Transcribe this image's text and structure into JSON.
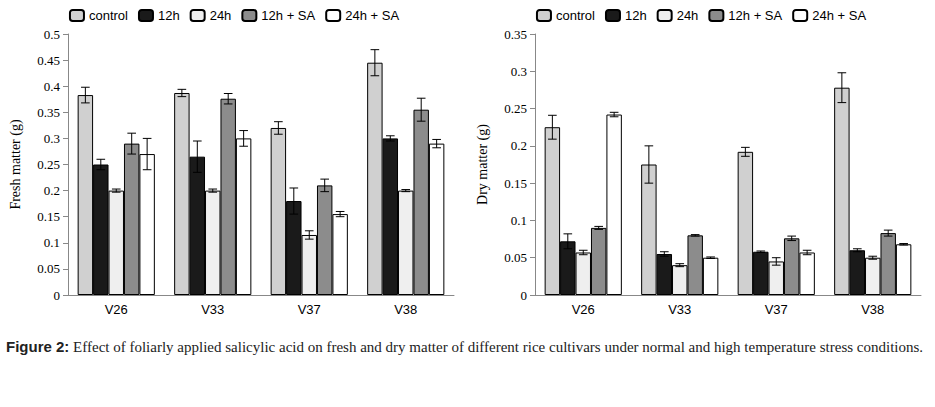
{
  "chart_data": [
    {
      "type": "bar",
      "y_label": "Fresh matter (g)",
      "categories": [
        "V26",
        "V33",
        "V37",
        "V38"
      ],
      "ylim": [
        0,
        0.5
      ],
      "yticks": [
        0,
        0.05,
        0.1,
        0.15,
        0.2,
        0.25,
        0.3,
        0.35,
        0.4,
        0.45,
        0.5
      ],
      "grid": false,
      "legend": "top",
      "series": [
        {
          "name": "control",
          "color": "#d0d0d0",
          "values": [
            0.383,
            0.387,
            0.32,
            0.445
          ],
          "errors": [
            0.015,
            0.007,
            0.012,
            0.025
          ]
        },
        {
          "name": "12h",
          "color": "#1a1a1a",
          "values": [
            0.25,
            0.265,
            0.18,
            0.3
          ],
          "errors": [
            0.01,
            0.03,
            0.025,
            0.005
          ]
        },
        {
          "name": "24h",
          "color": "#efefef",
          "values": [
            0.2,
            0.2,
            0.115,
            0.2
          ],
          "errors": [
            0.003,
            0.003,
            0.008,
            0.002
          ]
        },
        {
          "name": "12h + SA",
          "color": "#8c8c8c",
          "values": [
            0.29,
            0.376,
            0.21,
            0.355
          ],
          "errors": [
            0.02,
            0.01,
            0.012,
            0.022
          ]
        },
        {
          "name": "24h + SA",
          "color": "#ffffff",
          "values": [
            0.27,
            0.3,
            0.155,
            0.29
          ],
          "errors": [
            0.03,
            0.015,
            0.005,
            0.008
          ]
        }
      ]
    },
    {
      "type": "bar",
      "y_label": "Dry matter (g)",
      "categories": [
        "V26",
        "V33",
        "V37",
        "V38"
      ],
      "ylim": [
        0,
        0.35
      ],
      "yticks": [
        0,
        0.05,
        0.1,
        0.15,
        0.2,
        0.25,
        0.3,
        0.35
      ],
      "grid": false,
      "legend": "top",
      "series": [
        {
          "name": "control",
          "color": "#d0d0d0",
          "values": [
            0.225,
            0.175,
            0.192,
            0.278
          ],
          "errors": [
            0.016,
            0.025,
            0.006,
            0.02
          ]
        },
        {
          "name": "12h",
          "color": "#1a1a1a",
          "values": [
            0.072,
            0.055,
            0.058,
            0.06
          ],
          "errors": [
            0.01,
            0.003,
            0.001,
            0.002
          ]
        },
        {
          "name": "24h",
          "color": "#efefef",
          "values": [
            0.057,
            0.04,
            0.045,
            0.05
          ],
          "errors": [
            0.003,
            0.002,
            0.005,
            0.002
          ]
        },
        {
          "name": "12h + SA",
          "color": "#8c8c8c",
          "values": [
            0.09,
            0.08,
            0.076,
            0.083
          ],
          "errors": [
            0.002,
            0.001,
            0.003,
            0.004
          ]
        },
        {
          "name": "24h + SA",
          "color": "#ffffff",
          "values": [
            0.242,
            0.05,
            0.057,
            0.068
          ],
          "errors": [
            0.003,
            0.001,
            0.003,
            0.001
          ]
        }
      ]
    }
  ],
  "caption": {
    "label": "Figure 2:",
    "text": "Effect of foliarly applied salicylic acid on fresh and dry matter of different rice cultivars under normal and high temperature stress conditions."
  }
}
